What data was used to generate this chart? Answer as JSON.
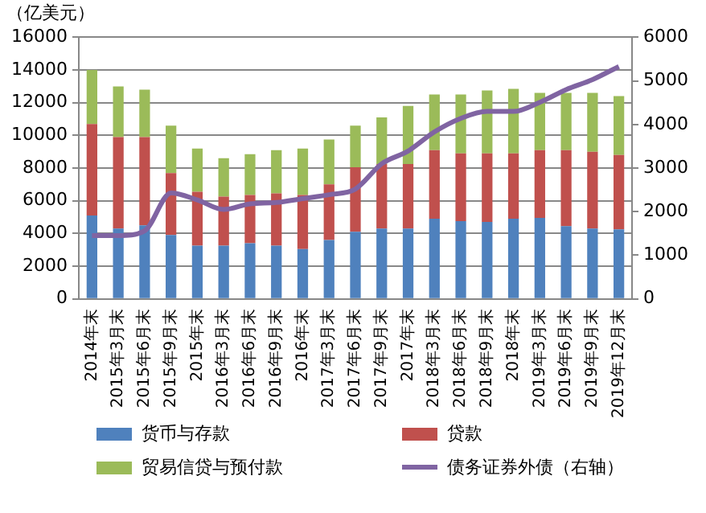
{
  "chart_data": {
    "type": "bar",
    "stacked": true,
    "title": "（亿美元）",
    "categories": [
      "2014年末",
      "2015年3月末",
      "2015年6月末",
      "2015年9月末",
      "2015年末",
      "2016年3月末",
      "2016年6月末",
      "2016年9月末",
      "2016年末",
      "2017年3月末",
      "2017年6月末",
      "2017年9月末",
      "2017年末",
      "2018年3月末",
      "2018年6月末",
      "2018年9月末",
      "2018年末",
      "2019年3月末",
      "2019年6月末",
      "2019年9月末",
      "2019年12月末"
    ],
    "series": [
      {
        "name": "货币与存款",
        "color": "#4f81bd",
        "values": [
          5100,
          4300,
          4500,
          3900,
          3250,
          3250,
          3400,
          3250,
          3050,
          3600,
          4100,
          4300,
          4300,
          4900,
          4750,
          4700,
          4900,
          4950,
          4450,
          4300,
          4250
        ]
      },
      {
        "name": "贷款",
        "color": "#c0504d",
        "values": [
          5600,
          5600,
          5400,
          3800,
          3300,
          3000,
          2950,
          3200,
          3300,
          3400,
          3950,
          3950,
          3950,
          4200,
          4150,
          4200,
          4000,
          4150,
          4650,
          4700,
          4550
        ]
      },
      {
        "name": "贸易信贷与预付款",
        "color": "#9bbb59",
        "values": [
          3300,
          3100,
          2900,
          2900,
          2650,
          2350,
          2500,
          2650,
          2850,
          2750,
          2550,
          2850,
          3550,
          3400,
          3600,
          3850,
          3950,
          3500,
          3500,
          3600,
          3600
        ]
      },
      {
        "name": "债务证券外债（右轴）",
        "color": "#8064a2",
        "type": "line",
        "axis": "y2",
        "values": [
          1450,
          1450,
          1560,
          2430,
          2270,
          2050,
          2180,
          2210,
          2300,
          2390,
          2520,
          3100,
          3390,
          3830,
          4140,
          4300,
          4300,
          4510,
          4800,
          5030,
          5330
        ]
      }
    ],
    "ylim": [
      0,
      16000
    ],
    "yticks": [
      0,
      2000,
      4000,
      6000,
      8000,
      10000,
      12000,
      14000,
      16000
    ],
    "y2lim": [
      0,
      6000
    ],
    "y2ticks": [
      0,
      1000,
      2000,
      3000,
      4000,
      5000,
      6000
    ],
    "grid": "y",
    "legend": "bottom",
    "marker": "none"
  }
}
